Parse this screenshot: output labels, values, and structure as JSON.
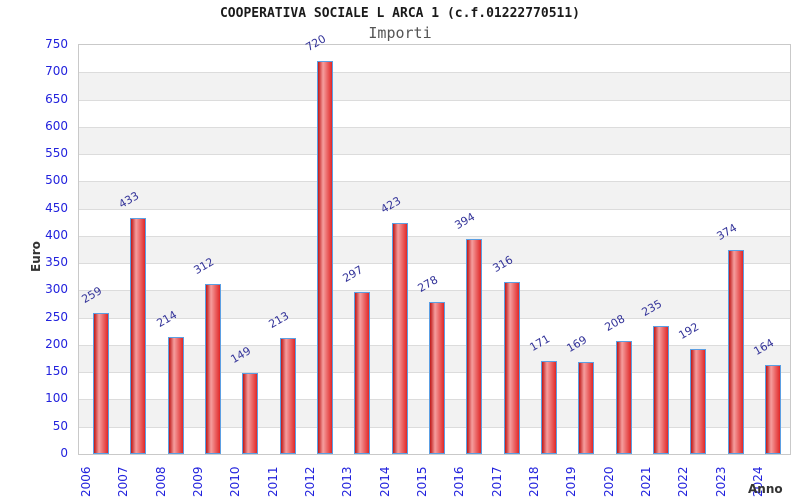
{
  "chart_data": {
    "type": "bar",
    "title": "COOPERATIVA SOCIALE L ARCA 1 (c.f.01222770511)",
    "subtitle": "Importi",
    "xlabel": "Anno",
    "ylabel": "Euro",
    "categories": [
      "2006",
      "2007",
      "2008",
      "2009",
      "2010",
      "2011",
      "2012",
      "2013",
      "2014",
      "2015",
      "2016",
      "2017",
      "2018",
      "2019",
      "2020",
      "2021",
      "2022",
      "2023",
      "2024"
    ],
    "values": [
      259,
      433,
      214,
      312,
      149,
      213,
      720,
      297,
      423,
      278,
      394,
      316,
      171,
      169,
      208,
      235,
      192,
      374,
      164
    ],
    "ylim": [
      0,
      750
    ],
    "ytick_step": 50,
    "grid": true,
    "alternating_bands": true,
    "legend": "none",
    "colors": {
      "title": "#1a1a1a",
      "subtitle": "#555555",
      "tick_labels": "#2222dd",
      "value_labels": "#333399",
      "axis_titles": "#333333",
      "plot_border": "#c9c9c9",
      "gridline": "#dcdcdc",
      "band": "#f2f2f2",
      "bar_border": "#5b9fe3",
      "bar_gradient_dark": "#c42222",
      "bar_gradient_light": "#f59e9e",
      "bar_gradient_end": "#e02828"
    }
  }
}
